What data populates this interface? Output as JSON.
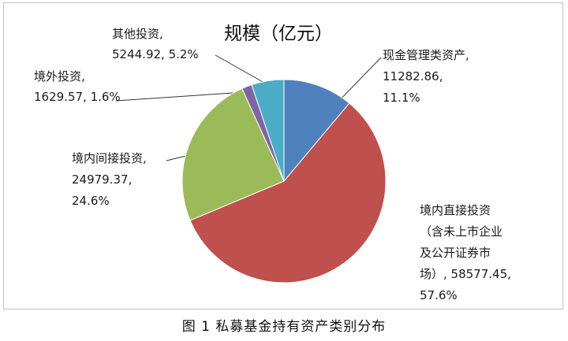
{
  "caption": "图 1  私募基金持有资产类别分布",
  "chart_data": {
    "type": "pie",
    "title": "规模（亿元）",
    "unit": "亿元",
    "slices": [
      {
        "name": "现金管理类资产",
        "value": 11282.86,
        "percent": "11.1%",
        "color": "#4f81bd",
        "label_lines": [
          "现金管理类资产,",
          "11282.86,",
          "11.1%"
        ]
      },
      {
        "name": "境内直接投资（含未上市企业及公开证券市场）",
        "value": 58577.45,
        "percent": "57.6%",
        "color": "#c0504d",
        "label_lines": [
          "境内直接投资",
          "（含未上市企业",
          "及公开证券市",
          "场）, 58577.45,",
          "57.6%"
        ]
      },
      {
        "name": "境内间接投资",
        "value": 24979.37,
        "percent": "24.6%",
        "color": "#9bbb59",
        "label_lines": [
          "境内间接投资,",
          "24979.37,",
          "24.6%"
        ]
      },
      {
        "name": "境外投资",
        "value": 1629.57,
        "percent": "1.6%",
        "color": "#8064a2",
        "label_lines": [
          "境外投资,",
          "1629.57, 1.6%"
        ]
      },
      {
        "name": "其他投资",
        "value": 5244.92,
        "percent": "5.2%",
        "color": "#4bacc6",
        "label_lines": [
          "其他投资,",
          "5244.92, 5.2%"
        ]
      }
    ]
  }
}
